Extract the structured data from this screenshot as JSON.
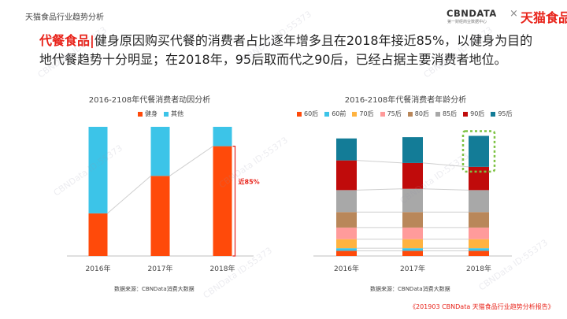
{
  "top_label": "天猫食品行业趋势分析",
  "logo": {
    "cbn": "CBNDATA",
    "cbn_sub": "第一财经商业数据中心",
    "times": "×",
    "tmall": "天猫食品"
  },
  "headline": {
    "category": "代餐食品|",
    "text": "健身原因购买代餐的消费者占比逐年增多且在2018年接近85%，以健身为目的地代餐趋势十分明显；在2018年，95后取而代之90后，已经占据主要消费者地位。"
  },
  "watermark_text": "CBNData ID:55373",
  "footer": "《201903 CBNData 天猫食品行业趋势分析报告》",
  "colors": {
    "accent": "#e8231a",
    "orange": "#ff4a0a",
    "cyan": "#3cc4e8"
  },
  "chart_data": [
    {
      "type": "bar",
      "stacked": true,
      "title": "2016-2108年代餐消费者动因分析",
      "categories": [
        "2016年",
        "2017年",
        "2018年"
      ],
      "series": [
        {
          "name": "健身",
          "color": "#ff4a0a",
          "values": [
            0.33,
            0.62,
            0.85
          ]
        },
        {
          "name": "其他",
          "color": "#3cc4e8",
          "values": [
            0.67,
            0.38,
            0.15
          ]
        }
      ],
      "ylim": [
        0,
        1
      ],
      "annotation": "近85%",
      "source": "数据来源：CBNData消费大数据"
    },
    {
      "type": "bar",
      "stacked": true,
      "title": "2016-2108年代餐消费者年龄分析",
      "categories": [
        "2016年",
        "2017年",
        "2018年"
      ],
      "series": [
        {
          "name": "60后",
          "color": "#ff4a0a",
          "values": [
            0.04,
            0.04,
            0.04
          ]
        },
        {
          "name": "60前",
          "color": "#3cc4e8",
          "values": [
            0.02,
            0.02,
            0.02
          ]
        },
        {
          "name": "70后",
          "color": "#ffb340",
          "values": [
            0.07,
            0.07,
            0.07
          ]
        },
        {
          "name": "75后",
          "color": "#ff9b9b",
          "values": [
            0.09,
            0.09,
            0.09
          ]
        },
        {
          "name": "80后",
          "color": "#b9875a",
          "values": [
            0.12,
            0.12,
            0.12
          ]
        },
        {
          "name": "85后",
          "color": "#a8a8a8",
          "values": [
            0.17,
            0.18,
            0.17
          ]
        },
        {
          "name": "90后",
          "color": "#c00b0b",
          "values": [
            0.23,
            0.2,
            0.18
          ]
        },
        {
          "name": "95后",
          "color": "#137c97",
          "values": [
            0.17,
            0.2,
            0.24
          ]
        }
      ],
      "ylim": [
        0,
        1
      ],
      "source": "数据来源：CBNData消费大数据"
    }
  ]
}
